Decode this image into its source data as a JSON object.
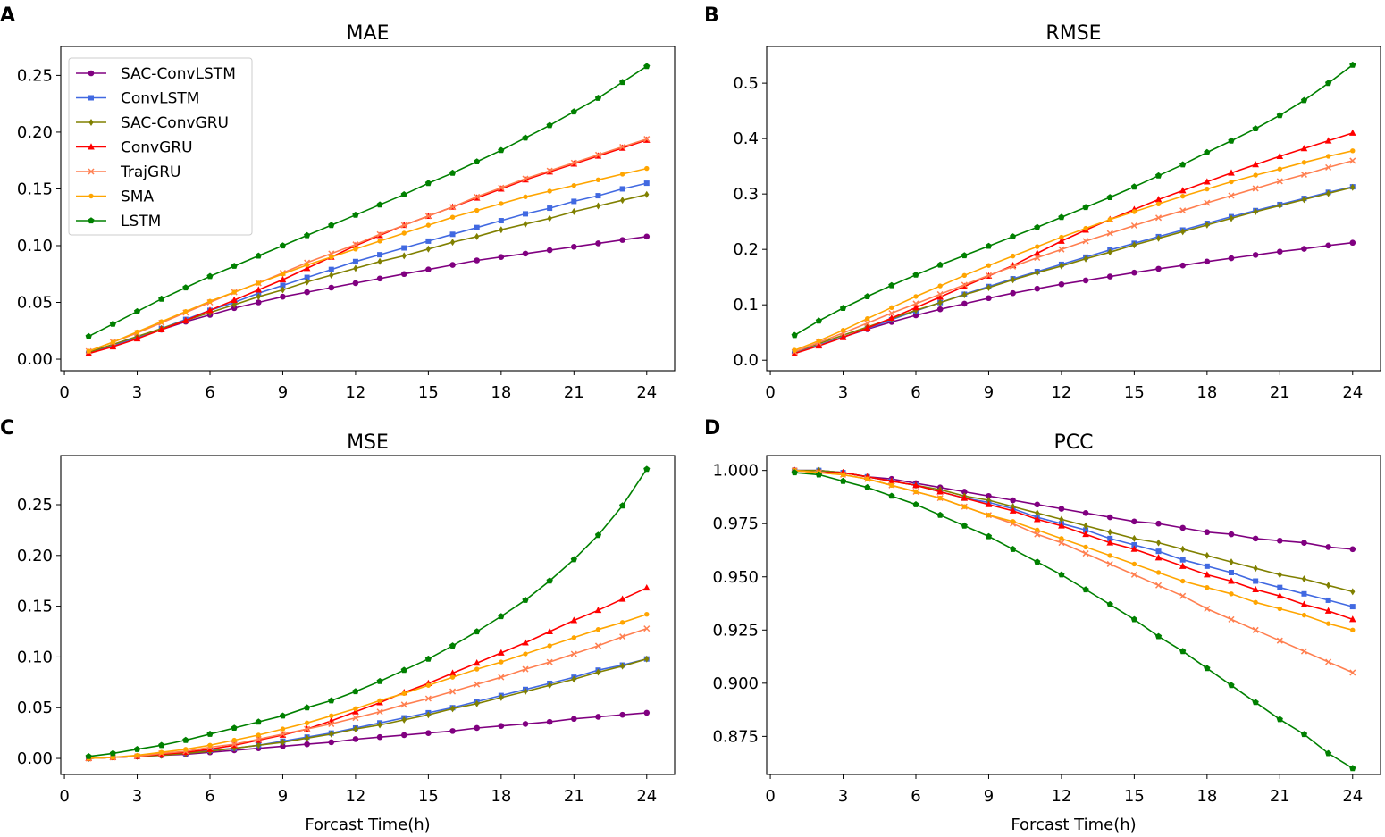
{
  "xlabel": "Forcast Time(h)",
  "chart_data": [
    {
      "type": "line",
      "panel": "A",
      "title": "MAE",
      "xlabel": "",
      "ylabel": "",
      "xlim": [
        -0.15,
        25.15
      ],
      "ylim": [
        -0.0102,
        0.2755
      ],
      "xticks": [
        0,
        3,
        6,
        9,
        12,
        15,
        18,
        21,
        24
      ],
      "yticks": [
        0.0,
        0.05,
        0.1,
        0.15,
        0.2,
        0.25
      ],
      "ytick_decimals": 2,
      "legend": "top-left",
      "x": [
        1,
        2,
        3,
        4,
        5,
        6,
        7,
        8,
        9,
        10,
        11,
        12,
        13,
        14,
        15,
        16,
        17,
        18,
        19,
        20,
        21,
        22,
        23,
        24
      ],
      "series": [
        {
          "name": "SAC-ConvLSTM",
          "values": [
            0.006,
            0.012,
            0.019,
            0.026,
            0.033,
            0.039,
            0.045,
            0.05,
            0.055,
            0.059,
            0.063,
            0.067,
            0.071,
            0.075,
            0.079,
            0.083,
            0.087,
            0.09,
            0.093,
            0.096,
            0.099,
            0.102,
            0.105,
            0.108
          ]
        },
        {
          "name": "ConvLSTM",
          "values": [
            0.005,
            0.012,
            0.019,
            0.027,
            0.035,
            0.043,
            0.05,
            0.058,
            0.065,
            0.072,
            0.079,
            0.086,
            0.092,
            0.098,
            0.104,
            0.11,
            0.116,
            0.122,
            0.128,
            0.133,
            0.139,
            0.144,
            0.15,
            0.155
          ]
        },
        {
          "name": "SAC-ConvGRU",
          "values": [
            0.006,
            0.013,
            0.02,
            0.027,
            0.034,
            0.041,
            0.048,
            0.055,
            0.061,
            0.068,
            0.074,
            0.08,
            0.086,
            0.091,
            0.097,
            0.103,
            0.108,
            0.114,
            0.119,
            0.124,
            0.13,
            0.135,
            0.14,
            0.145
          ]
        },
        {
          "name": "ConvGRU",
          "values": [
            0.005,
            0.011,
            0.018,
            0.026,
            0.034,
            0.043,
            0.052,
            0.061,
            0.07,
            0.08,
            0.09,
            0.1,
            0.109,
            0.118,
            0.126,
            0.134,
            0.142,
            0.15,
            0.158,
            0.165,
            0.172,
            0.179,
            0.186,
            0.193
          ]
        },
        {
          "name": "TrajGRU",
          "values": [
            0.007,
            0.015,
            0.023,
            0.032,
            0.041,
            0.05,
            0.059,
            0.067,
            0.076,
            0.085,
            0.093,
            0.101,
            0.11,
            0.118,
            0.126,
            0.134,
            0.143,
            0.151,
            0.159,
            0.166,
            0.173,
            0.18,
            0.187,
            0.194
          ]
        },
        {
          "name": "SMA",
          "values": [
            0.007,
            0.015,
            0.024,
            0.033,
            0.042,
            0.051,
            0.059,
            0.067,
            0.075,
            0.083,
            0.09,
            0.097,
            0.104,
            0.111,
            0.118,
            0.125,
            0.131,
            0.137,
            0.143,
            0.148,
            0.153,
            0.158,
            0.163,
            0.168
          ]
        },
        {
          "name": "LSTM",
          "values": [
            0.02,
            0.031,
            0.042,
            0.053,
            0.063,
            0.073,
            0.082,
            0.091,
            0.1,
            0.109,
            0.118,
            0.127,
            0.136,
            0.145,
            0.155,
            0.164,
            0.174,
            0.184,
            0.195,
            0.206,
            0.218,
            0.23,
            0.244,
            0.258
          ]
        }
      ]
    },
    {
      "type": "line",
      "panel": "B",
      "title": "RMSE",
      "xlabel": "",
      "ylabel": "",
      "xlim": [
        -0.15,
        25.15
      ],
      "ylim": [
        -0.019,
        0.5663
      ],
      "xticks": [
        0,
        3,
        6,
        9,
        12,
        15,
        18,
        21,
        24
      ],
      "yticks": [
        0.0,
        0.1,
        0.2,
        0.3,
        0.4,
        0.5
      ],
      "ytick_decimals": 1,
      "x": [
        1,
        2,
        3,
        4,
        5,
        6,
        7,
        8,
        9,
        10,
        11,
        12,
        13,
        14,
        15,
        16,
        17,
        18,
        19,
        20,
        21,
        22,
        23,
        24
      ],
      "series": [
        {
          "name": "SAC-ConvLSTM",
          "values": [
            0.013,
            0.027,
            0.042,
            0.056,
            0.069,
            0.081,
            0.092,
            0.102,
            0.112,
            0.121,
            0.129,
            0.137,
            0.144,
            0.151,
            0.158,
            0.165,
            0.171,
            0.178,
            0.184,
            0.19,
            0.196,
            0.201,
            0.207,
            0.212
          ]
        },
        {
          "name": "ConvLSTM",
          "values": [
            0.014,
            0.027,
            0.042,
            0.057,
            0.073,
            0.089,
            0.104,
            0.119,
            0.133,
            0.147,
            0.16,
            0.173,
            0.186,
            0.199,
            0.211,
            0.223,
            0.235,
            0.247,
            0.259,
            0.27,
            0.281,
            0.292,
            0.303,
            0.313
          ]
        },
        {
          "name": "SAC-ConvGRU",
          "values": [
            0.015,
            0.03,
            0.045,
            0.06,
            0.075,
            0.09,
            0.104,
            0.118,
            0.131,
            0.145,
            0.158,
            0.17,
            0.183,
            0.195,
            0.208,
            0.22,
            0.232,
            0.244,
            0.256,
            0.268,
            0.279,
            0.29,
            0.301,
            0.312
          ]
        },
        {
          "name": "ConvGRU",
          "values": [
            0.012,
            0.026,
            0.041,
            0.058,
            0.076,
            0.095,
            0.114,
            0.133,
            0.152,
            0.171,
            0.193,
            0.215,
            0.235,
            0.254,
            0.272,
            0.29,
            0.306,
            0.322,
            0.338,
            0.353,
            0.368,
            0.382,
            0.396,
            0.41
          ]
        },
        {
          "name": "TrajGRU",
          "values": [
            0.015,
            0.032,
            0.049,
            0.067,
            0.085,
            0.102,
            0.119,
            0.136,
            0.153,
            0.169,
            0.185,
            0.2,
            0.215,
            0.229,
            0.243,
            0.257,
            0.27,
            0.284,
            0.297,
            0.31,
            0.323,
            0.335,
            0.348,
            0.36
          ]
        },
        {
          "name": "SMA",
          "values": [
            0.018,
            0.035,
            0.054,
            0.075,
            0.095,
            0.115,
            0.134,
            0.153,
            0.171,
            0.188,
            0.205,
            0.222,
            0.238,
            0.254,
            0.268,
            0.282,
            0.296,
            0.309,
            0.322,
            0.334,
            0.345,
            0.357,
            0.368,
            0.378
          ]
        },
        {
          "name": "LSTM",
          "values": [
            0.045,
            0.071,
            0.094,
            0.115,
            0.135,
            0.154,
            0.172,
            0.189,
            0.206,
            0.223,
            0.24,
            0.258,
            0.276,
            0.294,
            0.313,
            0.333,
            0.353,
            0.375,
            0.396,
            0.418,
            0.442,
            0.469,
            0.5,
            0.533
          ]
        }
      ]
    },
    {
      "type": "line",
      "panel": "C",
      "title": "MSE",
      "xlabel": "Forcast Time(h)",
      "ylabel": "",
      "xlim": [
        -0.15,
        25.15
      ],
      "ylim": [
        -0.0158,
        0.2984
      ],
      "xticks": [
        0,
        3,
        6,
        9,
        12,
        15,
        18,
        21,
        24
      ],
      "yticks": [
        0.0,
        0.05,
        0.1,
        0.15,
        0.2,
        0.25
      ],
      "ytick_decimals": 2,
      "x": [
        1,
        2,
        3,
        4,
        5,
        6,
        7,
        8,
        9,
        10,
        11,
        12,
        13,
        14,
        15,
        16,
        17,
        18,
        19,
        20,
        21,
        22,
        23,
        24
      ],
      "series": [
        {
          "name": "SAC-ConvLSTM",
          "values": [
            0.0,
            0.001,
            0.002,
            0.003,
            0.004,
            0.006,
            0.008,
            0.01,
            0.012,
            0.014,
            0.016,
            0.019,
            0.021,
            0.023,
            0.025,
            0.027,
            0.03,
            0.032,
            0.034,
            0.036,
            0.039,
            0.041,
            0.043,
            0.045
          ]
        },
        {
          "name": "ConvLSTM",
          "values": [
            0.0,
            0.001,
            0.002,
            0.004,
            0.005,
            0.008,
            0.01,
            0.013,
            0.017,
            0.021,
            0.025,
            0.03,
            0.035,
            0.04,
            0.045,
            0.05,
            0.056,
            0.062,
            0.068,
            0.074,
            0.08,
            0.087,
            0.092,
            0.098
          ]
        },
        {
          "name": "SAC-ConvGRU",
          "values": [
            0.0,
            0.001,
            0.002,
            0.003,
            0.005,
            0.007,
            0.01,
            0.013,
            0.016,
            0.02,
            0.024,
            0.029,
            0.033,
            0.038,
            0.043,
            0.049,
            0.054,
            0.06,
            0.066,
            0.072,
            0.078,
            0.085,
            0.091,
            0.098
          ]
        },
        {
          "name": "ConvGRU",
          "values": [
            0.0,
            0.001,
            0.002,
            0.004,
            0.006,
            0.009,
            0.013,
            0.018,
            0.023,
            0.029,
            0.037,
            0.046,
            0.055,
            0.065,
            0.074,
            0.084,
            0.094,
            0.104,
            0.114,
            0.125,
            0.136,
            0.146,
            0.157,
            0.168
          ]
        },
        {
          "name": "TrajGRU",
          "values": [
            0.0,
            0.001,
            0.002,
            0.005,
            0.007,
            0.011,
            0.014,
            0.019,
            0.024,
            0.029,
            0.034,
            0.04,
            0.046,
            0.053,
            0.059,
            0.066,
            0.073,
            0.08,
            0.088,
            0.095,
            0.103,
            0.111,
            0.12,
            0.128
          ]
        },
        {
          "name": "SMA",
          "values": [
            0.0,
            0.001,
            0.003,
            0.006,
            0.009,
            0.013,
            0.018,
            0.023,
            0.029,
            0.035,
            0.042,
            0.049,
            0.057,
            0.064,
            0.072,
            0.08,
            0.088,
            0.095,
            0.103,
            0.111,
            0.119,
            0.127,
            0.134,
            0.142
          ]
        },
        {
          "name": "LSTM",
          "values": [
            0.002,
            0.005,
            0.009,
            0.013,
            0.018,
            0.024,
            0.03,
            0.036,
            0.042,
            0.05,
            0.057,
            0.066,
            0.076,
            0.087,
            0.098,
            0.111,
            0.125,
            0.14,
            0.156,
            0.175,
            0.196,
            0.22,
            0.249,
            0.285
          ]
        }
      ]
    },
    {
      "type": "line",
      "panel": "D",
      "title": "PCC",
      "xlabel": "Forcast Time(h)",
      "ylabel": "",
      "xlim": [
        -0.15,
        25.15
      ],
      "ylim": [
        0.8571,
        1.007
      ],
      "xticks": [
        0,
        3,
        6,
        9,
        12,
        15,
        18,
        21,
        24
      ],
      "yticks": [
        0.875,
        0.9,
        0.925,
        0.95,
        0.975,
        1.0
      ],
      "ytick_decimals": 3,
      "x": [
        1,
        2,
        3,
        4,
        5,
        6,
        7,
        8,
        9,
        10,
        11,
        12,
        13,
        14,
        15,
        16,
        17,
        18,
        19,
        20,
        21,
        22,
        23,
        24
      ],
      "series": [
        {
          "name": "SAC-ConvLSTM",
          "values": [
            1.0,
            1.0,
            0.999,
            0.997,
            0.996,
            0.994,
            0.992,
            0.99,
            0.988,
            0.986,
            0.984,
            0.982,
            0.98,
            0.978,
            0.976,
            0.975,
            0.973,
            0.971,
            0.97,
            0.968,
            0.967,
            0.966,
            0.964,
            0.963
          ]
        },
        {
          "name": "ConvLSTM",
          "values": [
            1.0,
            1.0,
            0.999,
            0.997,
            0.995,
            0.993,
            0.99,
            0.987,
            0.985,
            0.982,
            0.978,
            0.975,
            0.972,
            0.968,
            0.965,
            0.962,
            0.958,
            0.955,
            0.952,
            0.948,
            0.945,
            0.942,
            0.939,
            0.936
          ]
        },
        {
          "name": "SAC-ConvGRU",
          "values": [
            1.0,
            1.0,
            0.999,
            0.997,
            0.995,
            0.993,
            0.991,
            0.988,
            0.986,
            0.983,
            0.98,
            0.977,
            0.974,
            0.971,
            0.968,
            0.966,
            0.963,
            0.96,
            0.957,
            0.954,
            0.951,
            0.949,
            0.946,
            0.943
          ]
        },
        {
          "name": "ConvGRU",
          "values": [
            1.0,
            0.999,
            0.999,
            0.997,
            0.995,
            0.993,
            0.99,
            0.987,
            0.984,
            0.981,
            0.977,
            0.974,
            0.97,
            0.966,
            0.963,
            0.959,
            0.955,
            0.951,
            0.948,
            0.944,
            0.941,
            0.937,
            0.934,
            0.93
          ]
        },
        {
          "name": "TrajGRU",
          "values": [
            1.0,
            0.999,
            0.998,
            0.996,
            0.993,
            0.99,
            0.987,
            0.983,
            0.979,
            0.975,
            0.97,
            0.966,
            0.961,
            0.956,
            0.951,
            0.946,
            0.941,
            0.935,
            0.93,
            0.925,
            0.92,
            0.915,
            0.91,
            0.905
          ]
        },
        {
          "name": "SMA",
          "values": [
            1.0,
            0.999,
            0.998,
            0.996,
            0.993,
            0.99,
            0.987,
            0.983,
            0.979,
            0.976,
            0.972,
            0.968,
            0.964,
            0.96,
            0.956,
            0.952,
            0.948,
            0.945,
            0.942,
            0.938,
            0.935,
            0.932,
            0.928,
            0.925
          ]
        },
        {
          "name": "LSTM",
          "values": [
            0.999,
            0.998,
            0.995,
            0.992,
            0.988,
            0.984,
            0.979,
            0.974,
            0.969,
            0.963,
            0.957,
            0.951,
            0.944,
            0.937,
            0.93,
            0.922,
            0.915,
            0.907,
            0.899,
            0.891,
            0.883,
            0.876,
            0.867,
            0.86
          ]
        }
      ]
    }
  ],
  "styles": {
    "SAC-ConvLSTM": {
      "color": "#800080",
      "marker": "circle"
    },
    "ConvLSTM": {
      "color": "#4169e1",
      "marker": "square"
    },
    "SAC-ConvGRU": {
      "color": "#808000",
      "marker": "thin-diamond"
    },
    "ConvGRU": {
      "color": "#ff0000",
      "marker": "triangle"
    },
    "TrajGRU": {
      "color": "#ff7f50",
      "marker": "x"
    },
    "SMA": {
      "color": "#ffa500",
      "marker": "small-circle"
    },
    "LSTM": {
      "color": "#008000",
      "marker": "pentagon"
    }
  }
}
